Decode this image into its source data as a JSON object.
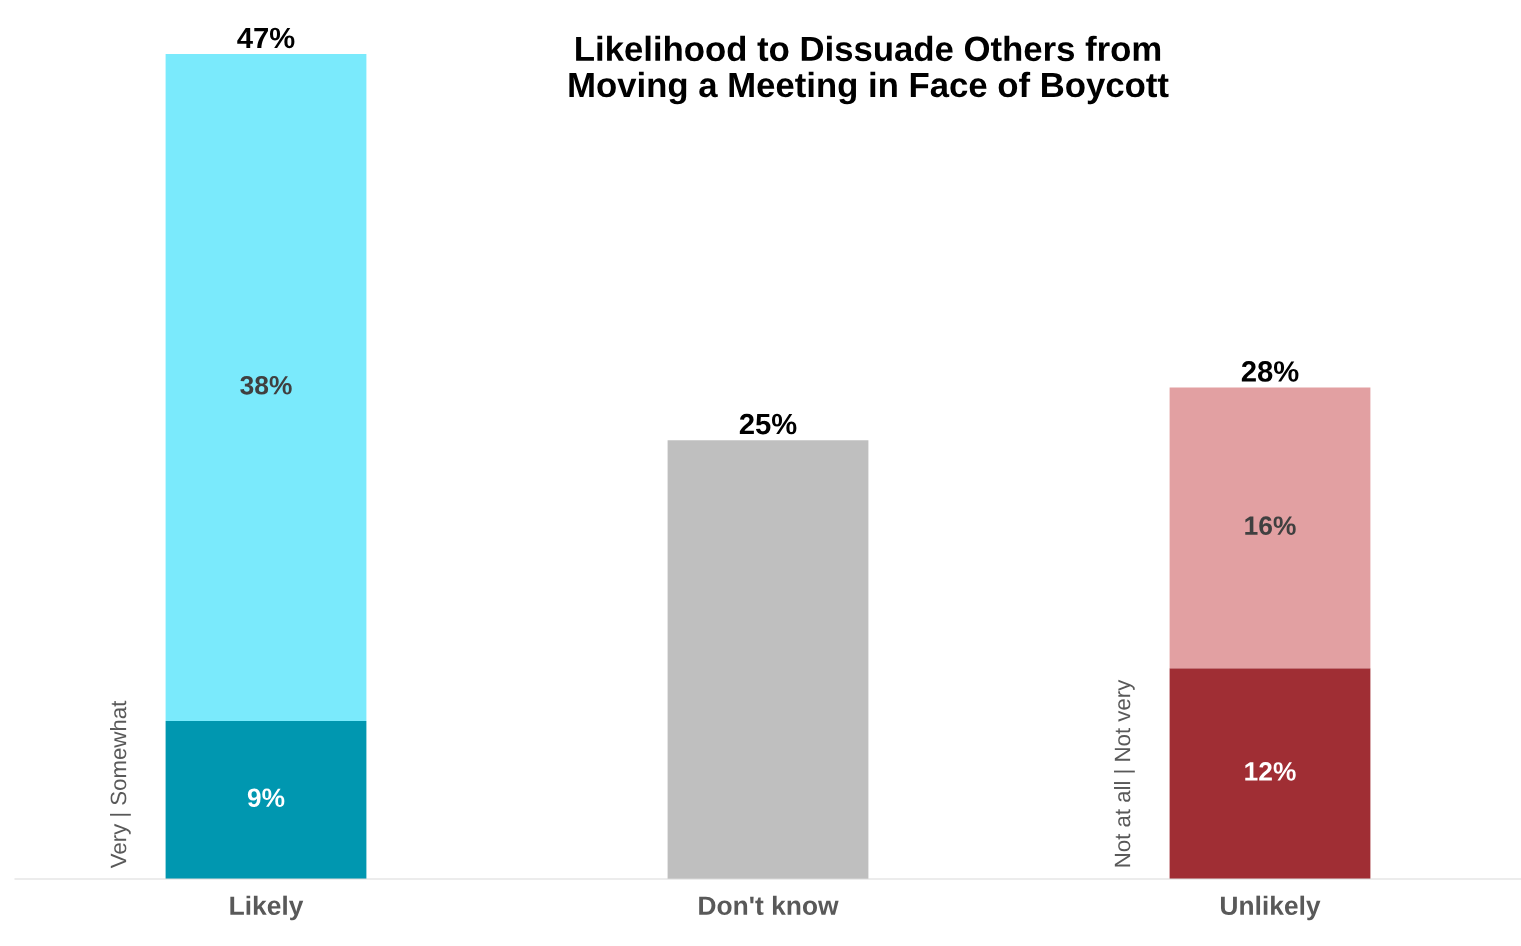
{
  "chart_data": {
    "type": "bar",
    "stacked": true,
    "title": "Likelihood to Dissuade Others from\nMoving a Meeting in Face of Boycott",
    "categories": [
      "Likely",
      "Don't know",
      "Unlikely"
    ],
    "series": [
      {
        "colors": [
          "#0097b0",
          "#bfbfbf",
          "#a02e34"
        ],
        "values": [
          9,
          25,
          12
        ],
        "value_labels": [
          "9%",
          null,
          "12%"
        ]
      },
      {
        "colors": [
          "#7aeafc",
          null,
          "#e2a0a2"
        ],
        "values": [
          38,
          null,
          16
        ],
        "value_labels": [
          "38%",
          null,
          "16%"
        ]
      }
    ],
    "totals": [
      "47%",
      "25%",
      "28%"
    ],
    "annotations": [
      "Very | Somewhat",
      "Not at all | Not very"
    ]
  }
}
